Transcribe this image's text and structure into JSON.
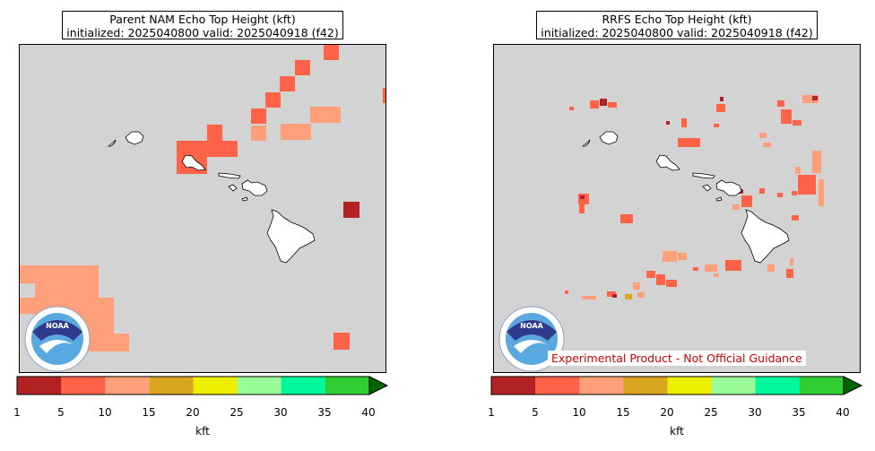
{
  "panels": {
    "left": {
      "title_line1": "Parent NAM Echo Top Height (kft)",
      "title_line2": "initialized: 2025040800 valid: 2025040918 (f42)"
    },
    "right": {
      "title_line1": "RRFS Echo Top Height (kft)",
      "title_line2": "initialized: 2025040800 valid: 2025040918 (f42)",
      "disclaimer": "Experimental Product - Not Official Guidance"
    }
  },
  "colorbar": {
    "ticks": [
      "1",
      "5",
      "10",
      "15",
      "20",
      "25",
      "30",
      "35",
      "40"
    ],
    "colors": [
      "#b22222",
      "#ff6347",
      "#ffa07a",
      "#daa520",
      "#eeee00",
      "#98fb98",
      "#00fa9a",
      "#32cd32"
    ],
    "extend_color": "#006400",
    "unit": "kft"
  },
  "map": {
    "background_color": "#d3d3d3",
    "land_color": "#ffffff",
    "logo": "NOAA"
  }
}
